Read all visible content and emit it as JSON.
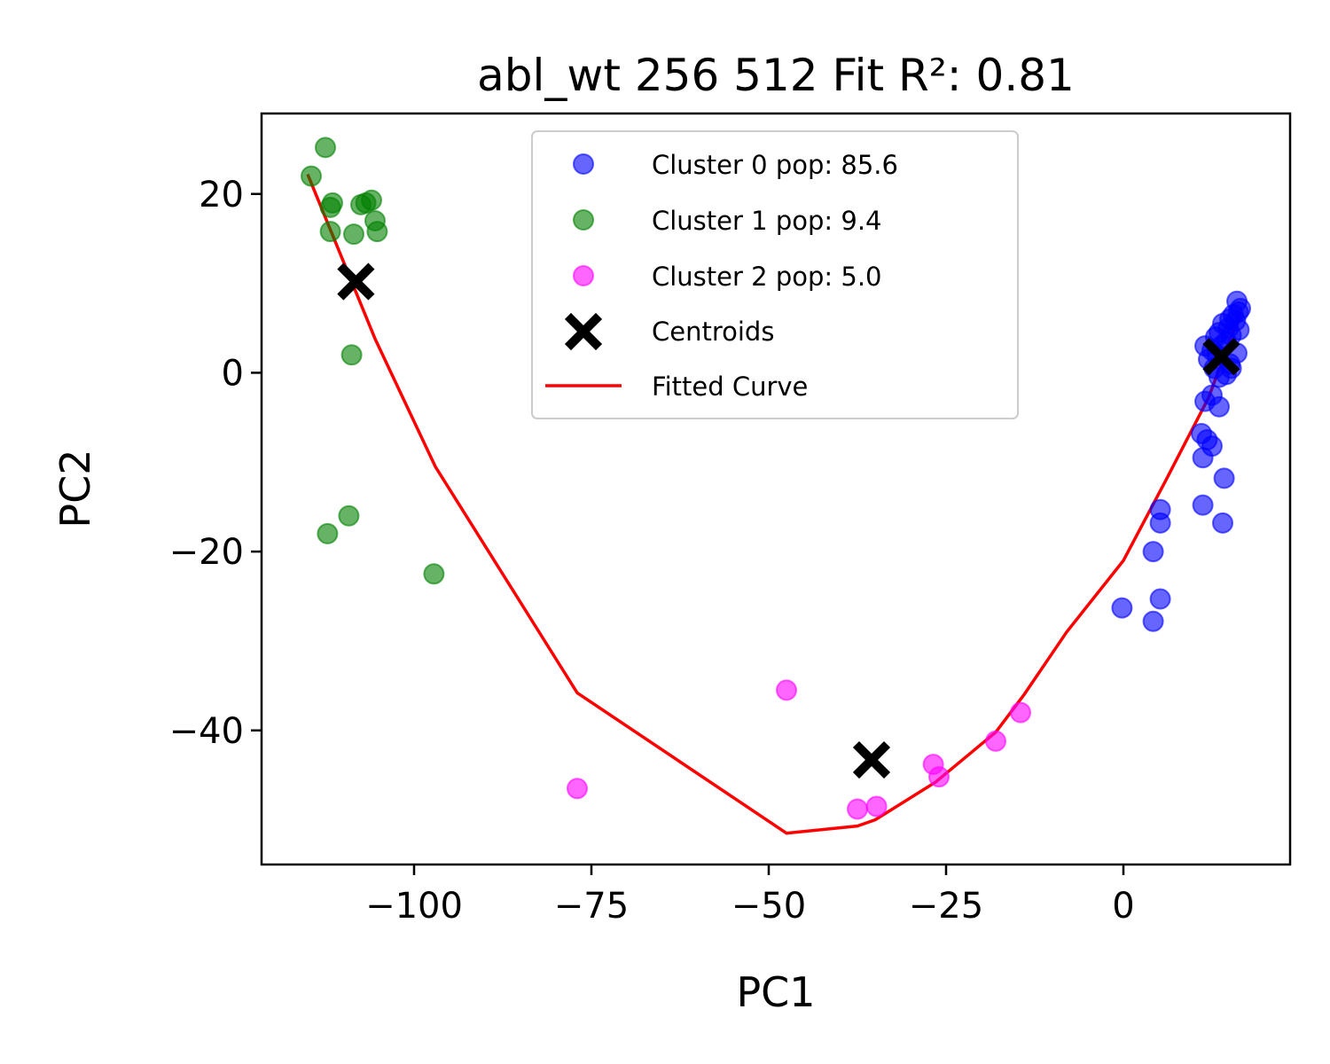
{
  "chart_data": {
    "type": "scatter",
    "title": "abl_wt 256 512 Fit R²: 0.81",
    "xlabel": "PC1",
    "ylabel": "PC2",
    "xlim": [
      -121.5,
      23.5
    ],
    "ylim": [
      -55,
      29
    ],
    "xticks": [
      -100,
      -75,
      -50,
      -25,
      0
    ],
    "yticks": [
      -40,
      -20,
      0,
      20
    ],
    "xtick_labels": [
      "−100",
      "−75",
      "−50",
      "−25",
      "0"
    ],
    "ytick_labels": [
      "−40",
      "−20",
      "0",
      "20"
    ],
    "grid": false,
    "legend_position": "top-center",
    "series": [
      {
        "name": "Cluster 0 pop: 85.6",
        "kind": "scatter",
        "color": "#0000ff",
        "points": [
          [
            16.0,
            8.0
          ],
          [
            15.5,
            6.5
          ],
          [
            15.0,
            6.0
          ],
          [
            14.8,
            5.0
          ],
          [
            14.0,
            5.5
          ],
          [
            13.5,
            4.5
          ],
          [
            13.0,
            4.0
          ],
          [
            14.5,
            3.5
          ],
          [
            15.2,
            4.2
          ],
          [
            16.2,
            6.8
          ],
          [
            16.5,
            7.2
          ],
          [
            15.8,
            5.8
          ],
          [
            13.8,
            3.0
          ],
          [
            12.5,
            2.5
          ],
          [
            11.5,
            3.0
          ],
          [
            12.0,
            1.5
          ],
          [
            13.2,
            2.0
          ],
          [
            16.0,
            2.2
          ],
          [
            15.0,
            1.0
          ],
          [
            12.8,
            0.5
          ],
          [
            13.5,
            -0.5
          ],
          [
            14.5,
            -0.2
          ],
          [
            15.2,
            0.5
          ],
          [
            16.3,
            4.8
          ],
          [
            11.5,
            -3.2
          ],
          [
            12.5,
            -2.5
          ],
          [
            13.5,
            -3.8
          ],
          [
            11.0,
            -6.8
          ],
          [
            11.8,
            -7.5
          ],
          [
            12.5,
            -8.2
          ],
          [
            11.2,
            -9.5
          ],
          [
            14.2,
            -11.8
          ],
          [
            11.2,
            -14.8
          ],
          [
            14.0,
            -16.8
          ],
          [
            5.2,
            -15.3
          ],
          [
            5.2,
            -16.8
          ],
          [
            4.2,
            -20.0
          ],
          [
            5.2,
            -25.3
          ],
          [
            -0.2,
            -26.3
          ],
          [
            4.2,
            -27.8
          ]
        ]
      },
      {
        "name": "Cluster 1 pop: 9.4",
        "kind": "scatter",
        "color": "#008000",
        "points": [
          [
            -112.5,
            25.2
          ],
          [
            -114.5,
            22.0
          ],
          [
            -111.5,
            19.0
          ],
          [
            -111.8,
            18.5
          ],
          [
            -107.5,
            18.8
          ],
          [
            -106.8,
            19.0
          ],
          [
            -106.0,
            19.3
          ],
          [
            -105.5,
            17.0
          ],
          [
            -111.8,
            15.8
          ],
          [
            -108.5,
            15.5
          ],
          [
            -105.2,
            15.8
          ],
          [
            -108.8,
            2.0
          ],
          [
            -109.2,
            -16.0
          ],
          [
            -112.2,
            -18.0
          ],
          [
            -97.2,
            -22.5
          ]
        ]
      },
      {
        "name": "Cluster 2 pop: 5.0",
        "kind": "scatter",
        "color": "#ff00ff",
        "points": [
          [
            -47.5,
            -35.5
          ],
          [
            -77.0,
            -46.5
          ],
          [
            -37.5,
            -48.8
          ],
          [
            -34.8,
            -48.5
          ],
          [
            -26.8,
            -43.8
          ],
          [
            -26.0,
            -45.2
          ],
          [
            -18.0,
            -41.2
          ],
          [
            -14.5,
            -38.0
          ]
        ]
      },
      {
        "name": "Centroids",
        "kind": "marker",
        "color": "#000000",
        "points": [
          [
            -108.2,
            10.2
          ],
          [
            -35.5,
            -43.3
          ],
          [
            13.8,
            1.8
          ]
        ]
      },
      {
        "name": "Fitted Curve",
        "kind": "line",
        "color": "#ff0000",
        "points": [
          [
            -115,
            22.2
          ],
          [
            -105.5,
            3.8
          ],
          [
            -97,
            -10.5
          ],
          [
            -77,
            -35.8
          ],
          [
            -47.5,
            -51.5
          ],
          [
            -37.5,
            -50.7
          ],
          [
            -35,
            -50.0
          ],
          [
            -26.5,
            -45.8
          ],
          [
            -18,
            -40.2
          ],
          [
            -14,
            -36.0
          ],
          [
            -8,
            -29.0
          ],
          [
            0,
            -21.0
          ],
          [
            6,
            -12.0
          ],
          [
            12,
            -2.8
          ],
          [
            16.5,
            6.8
          ]
        ]
      }
    ]
  }
}
